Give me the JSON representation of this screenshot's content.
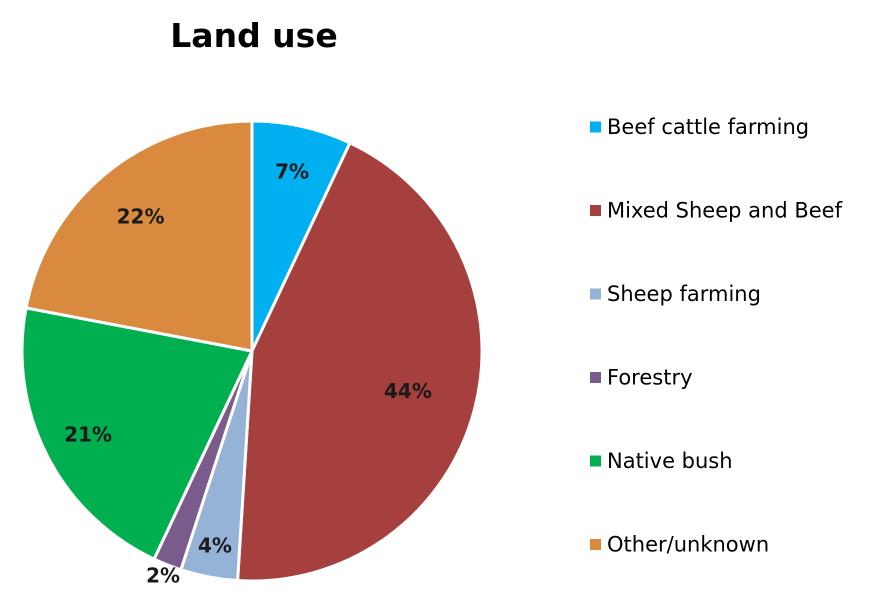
{
  "chart_data": {
    "type": "pie",
    "title": "Land use",
    "legend_position": "right",
    "categories": [
      "Beef cattle farming",
      "Mixed Sheep and Beef",
      "Sheep farming",
      "Forestry",
      "Native bush",
      "Other/unknown"
    ],
    "values": [
      7,
      44,
      4,
      2,
      21,
      22
    ],
    "labels": [
      "7%",
      "44%",
      "4%",
      "2%",
      "21%",
      "22%"
    ],
    "colors": [
      "#00B0F0",
      "#A5403E",
      "#95B3D7",
      "#7A5B8C",
      "#00B050",
      "#D98A3E"
    ]
  }
}
